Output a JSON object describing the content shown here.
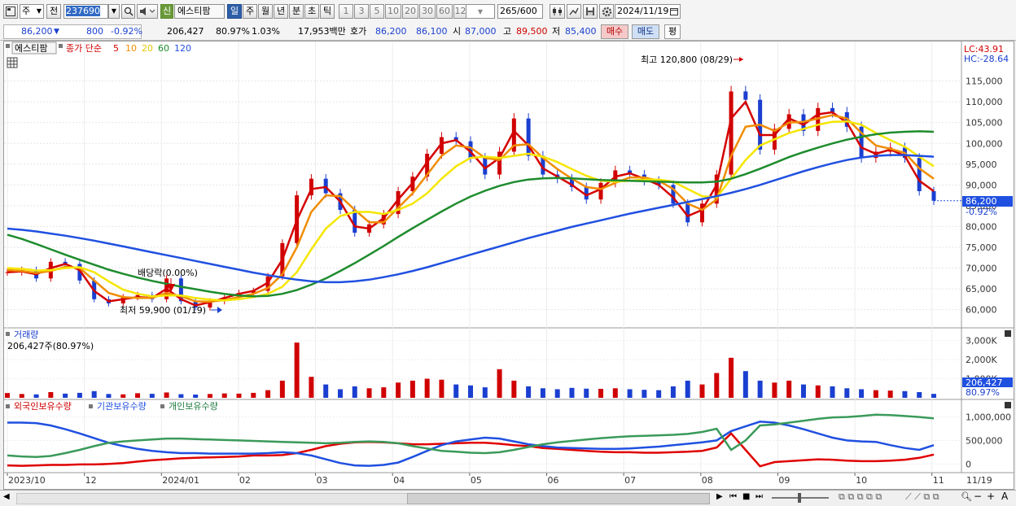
{
  "toolbar": {
    "period_type": "주",
    "prev_label": "전",
    "code": "237690",
    "name_tag": "신",
    "stock_name": "에스티팜",
    "tabs": [
      "일",
      "주",
      "월",
      "년",
      "분",
      "초",
      "틱"
    ],
    "active_tab": "일",
    "periods": [
      "1",
      "3",
      "5",
      "10",
      "20",
      "30",
      "60",
      "120"
    ],
    "count": "265",
    "count_total": "/600",
    "date": "2024/11/19"
  },
  "quote": {
    "price": "86,200",
    "change": "800",
    "change_pct": "-0.92%",
    "volume": "206,427",
    "volume_ratio": "80.97%",
    "turnover_rate": "1.03%",
    "amount": "17,953백만",
    "hoga_label": "호가",
    "ask": "86,200",
    "bid": "86,100",
    "open_label": "시",
    "open": "87,000",
    "high_label": "고",
    "high": "89,500",
    "low_label": "저",
    "low": "85,400",
    "buy_label": "매수",
    "sell_label": "매도",
    "eval_label": "평"
  },
  "legend": {
    "name": "에스티팜",
    "close_label": "종가 단순",
    "ma": [
      "5",
      "10",
      "20",
      "60",
      "120"
    ]
  },
  "annotations": {
    "max": "최고 120,800 (08/29)",
    "min": "최저 59,900 (01/19)",
    "dividend": "배당락(0.00%)",
    "lc": "LC:43.91",
    "hc": "HC:-28.64",
    "price_tag": "86,200",
    "pct_tag": "-0.92%"
  },
  "volume_panel": {
    "title": "거래량",
    "current": "206,427주(80.97%)",
    "tag": "206,427",
    "tag_pct": "80.97%"
  },
  "holdings_panel": {
    "legends": [
      "외국인보유수량",
      "기관보유수량",
      "개인보유수량"
    ]
  },
  "icons": [
    "chart-type-icon",
    "search-icon",
    "sound-icon",
    "settings-icon",
    "calendar-icon",
    "save-icon",
    "crosshair-icon",
    "order-icon"
  ],
  "colors": {
    "up": "#d00000",
    "down": "#1a3fd0",
    "ma5": "#d40000",
    "ma10": "#f08c00",
    "ma20": "#f5e600",
    "ma60": "#1e8c2e",
    "ma120": "#2050e0",
    "foreign": "#e00000",
    "institution": "#2050e0",
    "individual": "#3a9a5a"
  },
  "chart_data": {
    "type": "line",
    "title": "에스티팜",
    "x_axis_labels": [
      "2023/10",
      "12",
      "2024/01",
      "02",
      "03",
      "04",
      "05",
      "06",
      "07",
      "08",
      "09",
      "10",
      "11",
      "11/19"
    ],
    "price_axis": {
      "ticks": [
        "115,000",
        "110,000",
        "105,000",
        "100,000",
        "95,000",
        "90,000",
        "85,000",
        "80,000",
        "75,000",
        "70,000",
        "65,000",
        "60,000"
      ],
      "ylim": [
        56000,
        121000
      ]
    },
    "volume_axis": {
      "ticks": [
        "3,000K",
        "2,000K",
        "1,000K"
      ],
      "ylim": [
        0,
        3500000
      ]
    },
    "holdings_axis": {
      "ticks": [
        "1,000,000",
        "500,000",
        "0"
      ],
      "ylim": [
        -150000,
        1200000
      ]
    },
    "series": [
      {
        "name": "종가",
        "values": [
          69000,
          69500,
          67500,
          71500,
          71000,
          67000,
          62500,
          61500,
          63000,
          63500,
          62500,
          67500,
          62000,
          60500,
          62000,
          63000,
          64000,
          64500,
          68000,
          76000,
          87500,
          91500,
          88000,
          84000,
          78500,
          80500,
          83000,
          88500,
          92000,
          97500,
          101500,
          100500,
          96500,
          92500,
          98000,
          106000,
          97000,
          92500,
          91500,
          89500,
          86500,
          90500,
          93500,
          92500,
          91000,
          90000,
          85500,
          81000,
          85500,
          92500,
          112500,
          110500,
          98500,
          103500,
          107000,
          103000,
          108500,
          107500,
          104000,
          96500,
          98000,
          99000,
          96500,
          88500,
          86200
        ]
      },
      {
        "name": "5",
        "values": [
          69000,
          69200,
          68500,
          70000,
          71000,
          69500,
          64500,
          62000,
          62500,
          63000,
          62800,
          65000,
          62500,
          61000,
          61800,
          62800,
          63800,
          64500,
          66500,
          72000,
          81500,
          89000,
          89500,
          86000,
          80000,
          79500,
          82000,
          86500,
          90500,
          95500,
          100000,
          100800,
          98000,
          94000,
          96500,
          103000,
          99500,
          94000,
          92000,
          90000,
          87500,
          89000,
          92000,
          92800,
          91500,
          90000,
          87000,
          82500,
          84000,
          90000,
          106000,
          110000,
          102000,
          102000,
          106000,
          104500,
          107000,
          107500,
          105000,
          99000,
          97500,
          98500,
          97000,
          91000,
          88500
        ]
      },
      {
        "name": "10",
        "values": [
          69500,
          69300,
          68800,
          69300,
          70300,
          70000,
          67000,
          64000,
          63000,
          62800,
          62800,
          64000,
          63200,
          62000,
          61900,
          62300,
          63000,
          63800,
          65200,
          68500,
          75000,
          83500,
          87500,
          87300,
          84000,
          81000,
          81000,
          84500,
          88000,
          92500,
          97000,
          99500,
          99000,
          96500,
          96000,
          99500,
          99800,
          96500,
          93800,
          91500,
          89500,
          89000,
          90500,
          91800,
          91800,
          91000,
          89000,
          85500,
          84000,
          86500,
          97000,
          104000,
          104500,
          103000,
          105000,
          105200,
          106000,
          106800,
          106000,
          102500,
          99500,
          98700,
          97700,
          94000,
          91500
        ]
      },
      {
        "name": "20",
        "values": [
          70000,
          69800,
          69400,
          69500,
          70000,
          70200,
          69000,
          66800,
          64800,
          63800,
          63200,
          63400,
          63400,
          62800,
          62400,
          62200,
          62500,
          63000,
          63800,
          65500,
          69000,
          74500,
          79500,
          82500,
          83500,
          83500,
          83000,
          84000,
          85500,
          88000,
          91500,
          94500,
          96500,
          96800,
          96500,
          97000,
          97500,
          96800,
          95500,
          93800,
          92200,
          91000,
          90800,
          91000,
          91300,
          91300,
          90800,
          89000,
          87300,
          87000,
          91500,
          96000,
          99500,
          101000,
          102500,
          103500,
          104500,
          105200,
          105300,
          104500,
          102500,
          100800,
          99200,
          96800,
          94500
        ]
      },
      {
        "name": "60",
        "values": [
          78000,
          77000,
          75800,
          74500,
          73200,
          72000,
          70800,
          69600,
          68600,
          67700,
          66900,
          66200,
          65500,
          64900,
          64300,
          63800,
          63400,
          63200,
          63300,
          63800,
          64700,
          66000,
          67500,
          69300,
          71200,
          73200,
          75300,
          77500,
          79600,
          81600,
          83600,
          85500,
          87200,
          88600,
          89800,
          90700,
          91300,
          91600,
          91700,
          91600,
          91400,
          91200,
          91100,
          91000,
          90900,
          90800,
          90700,
          90600,
          90600,
          90800,
          91500,
          92600,
          93900,
          95300,
          96700,
          97900,
          99000,
          100000,
          100900,
          101600,
          102200,
          102600,
          102800,
          102900,
          102800
        ]
      },
      {
        "name": "120",
        "values": [
          79500,
          79200,
          78800,
          78300,
          77800,
          77200,
          76600,
          75900,
          75200,
          74500,
          73800,
          73100,
          72400,
          71700,
          71000,
          70300,
          69600,
          68900,
          68300,
          67700,
          67200,
          66800,
          66600,
          66600,
          66800,
          67200,
          67800,
          68500,
          69300,
          70200,
          71200,
          72200,
          73200,
          74200,
          75200,
          76200,
          77200,
          78100,
          79000,
          79900,
          80700,
          81500,
          82300,
          83100,
          83800,
          84500,
          85200,
          85900,
          86600,
          87300,
          88100,
          89000,
          90000,
          91100,
          92200,
          93300,
          94300,
          95200,
          96000,
          96600,
          97000,
          97200,
          97200,
          97000,
          96800
        ]
      }
    ],
    "volume_values": [
      250000,
      200000,
      180000,
      300000,
      220000,
      260000,
      350000,
      200000,
      180000,
      240000,
      210000,
      280000,
      190000,
      170000,
      200000,
      230000,
      220000,
      260000,
      400000,
      900000,
      2900000,
      1100000,
      700000,
      450000,
      600000,
      500000,
      550000,
      800000,
      900000,
      1000000,
      950000,
      700000,
      650000,
      550000,
      1500000,
      900000,
      600000,
      500000,
      450000,
      520000,
      480000,
      470000,
      500000,
      450000,
      420000,
      400000,
      600000,
      900000,
      700000,
      1300000,
      2100000,
      1400000,
      900000,
      800000,
      900000,
      700000,
      650000,
      600000,
      500000,
      450000,
      400000,
      380000,
      350000,
      300000,
      206427
    ],
    "holdings": [
      {
        "name": "외국인보유수량",
        "values": [
          -30000,
          -40000,
          -30000,
          -20000,
          -20000,
          -10000,
          -10000,
          0,
          20000,
          50000,
          80000,
          100000,
          120000,
          130000,
          140000,
          150000,
          160000,
          180000,
          180000,
          190000,
          230000,
          300000,
          380000,
          430000,
          460000,
          470000,
          460000,
          440000,
          420000,
          420000,
          430000,
          440000,
          450000,
          450000,
          430000,
          400000,
          380000,
          340000,
          320000,
          300000,
          280000,
          260000,
          250000,
          250000,
          240000,
          240000,
          250000,
          260000,
          280000,
          350000,
          650000,
          300000,
          -50000,
          40000,
          60000,
          80000,
          100000,
          90000,
          70000,
          60000,
          60000,
          70000,
          90000,
          130000,
          200000
        ]
      },
      {
        "name": "기관보유수량",
        "values": [
          880000,
          880000,
          870000,
          820000,
          740000,
          650000,
          550000,
          450000,
          380000,
          320000,
          280000,
          250000,
          230000,
          230000,
          220000,
          220000,
          220000,
          220000,
          230000,
          250000,
          230000,
          180000,
          100000,
          20000,
          -30000,
          -40000,
          -20000,
          30000,
          150000,
          280000,
          400000,
          480000,
          520000,
          560000,
          540000,
          480000,
          420000,
          380000,
          350000,
          340000,
          330000,
          320000,
          320000,
          330000,
          350000,
          370000,
          400000,
          430000,
          460000,
          500000,
          700000,
          800000,
          900000,
          880000,
          820000,
          740000,
          650000,
          560000,
          500000,
          480000,
          470000,
          400000,
          340000,
          300000,
          400000
        ]
      },
      {
        "name": "개인보유수량",
        "values": [
          180000,
          160000,
          150000,
          170000,
          230000,
          300000,
          380000,
          450000,
          480000,
          500000,
          520000,
          540000,
          540000,
          530000,
          520000,
          510000,
          500000,
          490000,
          480000,
          470000,
          460000,
          450000,
          440000,
          450000,
          470000,
          480000,
          470000,
          440000,
          380000,
          330000,
          280000,
          260000,
          240000,
          230000,
          250000,
          300000,
          360000,
          420000,
          460000,
          490000,
          520000,
          550000,
          570000,
          590000,
          600000,
          610000,
          620000,
          640000,
          680000,
          750000,
          300000,
          500000,
          820000,
          840000,
          880000,
          920000,
          960000,
          990000,
          1000000,
          1020000,
          1050000,
          1040000,
          1020000,
          1000000,
          970000
        ]
      }
    ]
  }
}
